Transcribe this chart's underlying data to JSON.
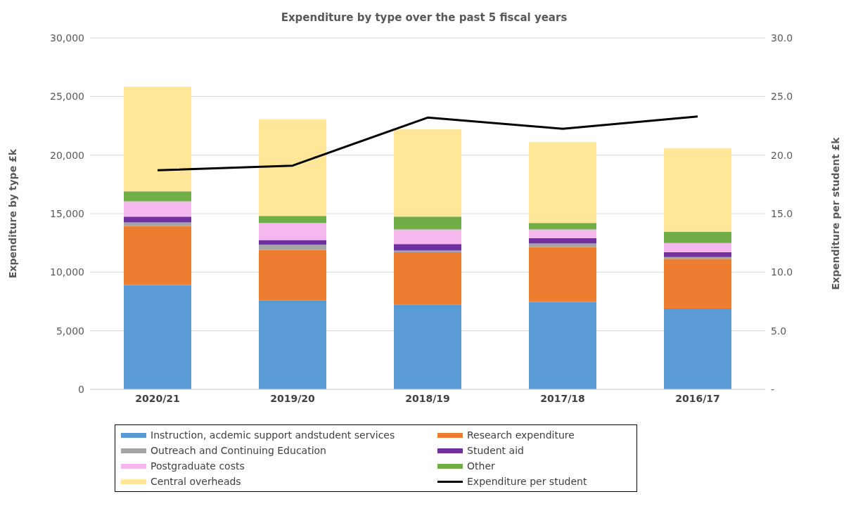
{
  "chart_data": {
    "type": "bar",
    "title": "Expenditure by type over the past 5 fiscal years",
    "ylabel": "Expenditure by type £k",
    "y2label": "Expenditure per student £k",
    "categories": [
      "2020/21",
      "2019/20",
      "2018/19",
      "2017/18",
      "2016/17"
    ],
    "stacked": true,
    "series": [
      {
        "name": "Instruction, acdemic support andstudent services",
        "color": "#5b9bd5",
        "values": [
          8900,
          7600,
          7250,
          7450,
          6900
        ]
      },
      {
        "name": "Research expenditure",
        "color": "#ed7d31",
        "values": [
          5050,
          4300,
          4450,
          4700,
          4250
        ]
      },
      {
        "name": "Outreach and Continuing Education",
        "color": "#a5a5a5",
        "values": [
          300,
          450,
          150,
          300,
          150
        ]
      },
      {
        "name": "Student aid",
        "color": "#7030a0",
        "values": [
          500,
          400,
          550,
          450,
          400
        ]
      },
      {
        "name": "Postgraduate costs",
        "color": "#f4b8ef",
        "values": [
          1300,
          1450,
          1250,
          750,
          800
        ]
      },
      {
        "name": "Other",
        "color": "#70ad47",
        "values": [
          850,
          600,
          1100,
          550,
          950
        ]
      },
      {
        "name": "Central overheads",
        "color": "#ffe699",
        "values": [
          8950,
          8250,
          7450,
          6900,
          7150
        ]
      },
      {
        "name": "Expenditure per student",
        "type": "line",
        "axis": "y2",
        "color": "#000000",
        "values": [
          18.7,
          19.1,
          23.2,
          22.25,
          23.3
        ]
      }
    ],
    "ylim": [
      0,
      30000
    ],
    "yticks": [
      {
        "value": 0,
        "label": "0"
      },
      {
        "value": 5000,
        "label": "5,000"
      },
      {
        "value": 10000,
        "label": "10,000"
      },
      {
        "value": 15000,
        "label": "15,000"
      },
      {
        "value": 20000,
        "label": "20,000"
      },
      {
        "value": 25000,
        "label": "25,000"
      },
      {
        "value": 30000,
        "label": "30,000"
      }
    ],
    "y2lim": [
      0,
      30
    ],
    "y2ticks": [
      {
        "value": 0,
        "label": "-"
      },
      {
        "value": 5,
        "label": "5.0"
      },
      {
        "value": 10,
        "label": "10.0"
      },
      {
        "value": 15,
        "label": "15.0"
      },
      {
        "value": 20,
        "label": "20.0"
      },
      {
        "value": 25,
        "label": "25.0"
      },
      {
        "value": 30,
        "label": "30.0"
      }
    ],
    "grid": "y",
    "legend": "bottom",
    "marker": "none",
    "line_style": "solid"
  }
}
